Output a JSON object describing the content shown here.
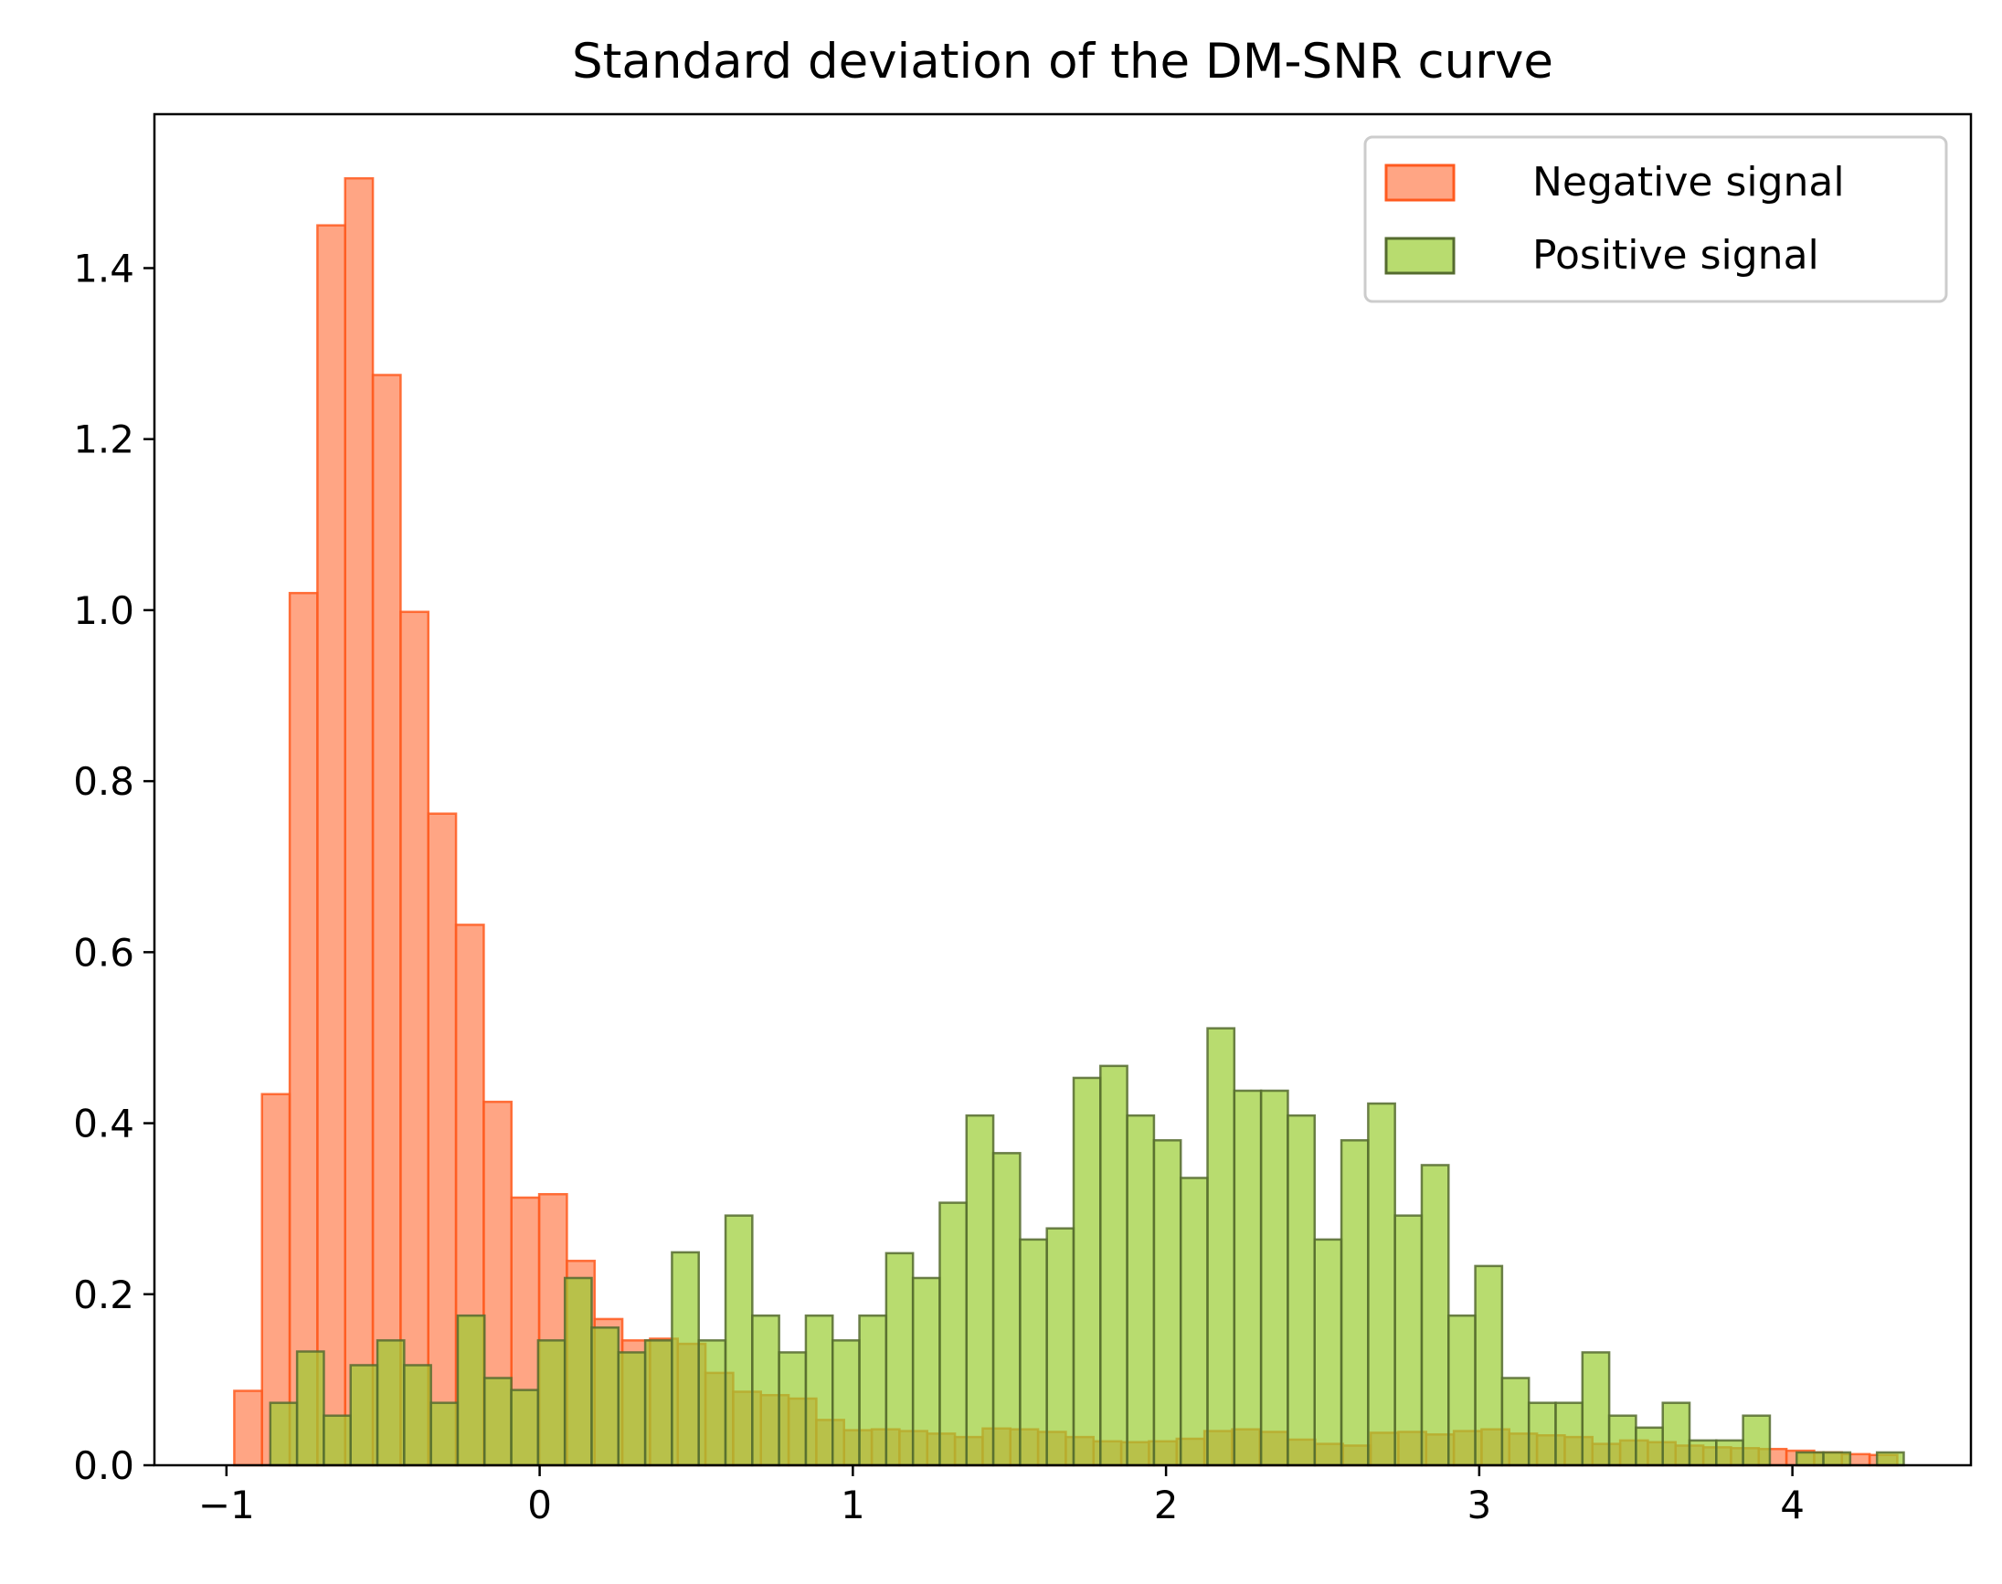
{
  "chart_data": {
    "type": "bar",
    "subtype": "histogram",
    "title": "Standard deviation of the DM-SNR curve",
    "xlabel": "",
    "ylabel": "",
    "xlim": [
      -1.23,
      4.57
    ],
    "ylim": [
      0,
      1.58
    ],
    "x_ticks": [
      -1,
      0,
      1,
      2,
      3,
      4
    ],
    "x_tick_labels": [
      "−1",
      "0",
      "1",
      "2",
      "3",
      "4"
    ],
    "y_ticks": [
      0.0,
      0.2,
      0.4,
      0.6,
      0.8,
      1.0,
      1.2,
      1.4
    ],
    "y_tick_labels": [
      "0.0",
      "0.2",
      "0.4",
      "0.6",
      "0.8",
      "1.0",
      "1.2",
      "1.4"
    ],
    "legend_position": "top-right",
    "grid": false,
    "series": [
      {
        "name": "Negative signal",
        "fill": "#ff7f50",
        "fill_opacity": 0.7,
        "stroke": "#ff5a1f",
        "bin_start": -0.975,
        "bin_width": 0.0885,
        "values": [
          0.087,
          0.434,
          1.02,
          1.45,
          1.505,
          1.275,
          0.998,
          0.762,
          0.632,
          0.425,
          0.313,
          0.317,
          0.239,
          0.171,
          0.146,
          0.148,
          0.142,
          0.108,
          0.086,
          0.082,
          0.078,
          0.053,
          0.041,
          0.042,
          0.04,
          0.037,
          0.033,
          0.043,
          0.042,
          0.039,
          0.033,
          0.028,
          0.027,
          0.028,
          0.031,
          0.04,
          0.042,
          0.039,
          0.03,
          0.025,
          0.023,
          0.038,
          0.039,
          0.036,
          0.04,
          0.042,
          0.037,
          0.035,
          0.033,
          0.025,
          0.029,
          0.027,
          0.023,
          0.021,
          0.02,
          0.019,
          0.017,
          0.015,
          0.013,
          0.012
        ]
      },
      {
        "name": "Positive signal",
        "fill": "#9acd32",
        "fill_opacity": 0.7,
        "stroke": "#556b2f",
        "bin_start": -0.86,
        "bin_width": 0.0855,
        "values": [
          0.073,
          0.133,
          0.058,
          0.117,
          0.146,
          0.117,
          0.073,
          0.175,
          0.102,
          0.088,
          0.146,
          0.219,
          0.161,
          0.132,
          0.146,
          0.249,
          0.146,
          0.292,
          0.175,
          0.132,
          0.175,
          0.146,
          0.175,
          0.248,
          0.219,
          0.307,
          0.409,
          0.365,
          0.264,
          0.277,
          0.453,
          0.467,
          0.409,
          0.38,
          0.336,
          0.511,
          0.438,
          0.438,
          0.409,
          0.264,
          0.38,
          0.423,
          0.292,
          0.351,
          0.175,
          0.233,
          0.102,
          0.073,
          0.073,
          0.132,
          0.058,
          0.044,
          0.073,
          0.029,
          0.029,
          0.058,
          0.0,
          0.015,
          0.015,
          0.0,
          0.015
        ]
      }
    ]
  }
}
